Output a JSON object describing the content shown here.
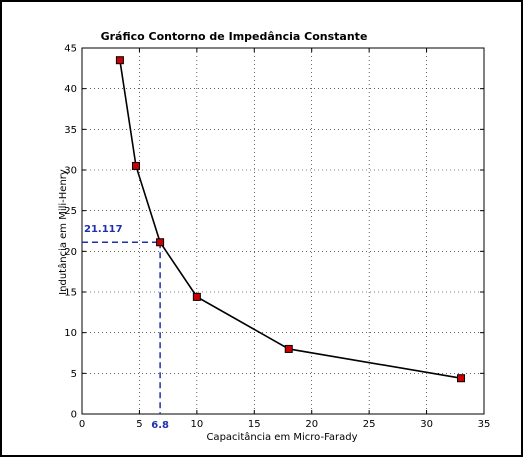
{
  "chart_data": {
    "type": "line",
    "title": "Gráfico Contorno de Impedância Constante",
    "xlabel": "Capacitância em Micro-Farady",
    "ylabel": "Indutância em Mili-Henry",
    "xlim": [
      0,
      35
    ],
    "ylim": [
      0,
      45
    ],
    "xticks": [
      0,
      5,
      10,
      15,
      20,
      25,
      30,
      35
    ],
    "yticks": [
      0,
      5,
      10,
      15,
      20,
      25,
      30,
      35,
      40,
      45
    ],
    "grid": true,
    "x": [
      3.3,
      4.7,
      6.8,
      10,
      18,
      33
    ],
    "y": [
      43.5,
      30.5,
      21.117,
      14.4,
      8.0,
      4.4
    ],
    "marker": "square",
    "line_color": "#000000",
    "marker_color": "#cc0000",
    "annotation": {
      "x": 6.8,
      "y": 21.117,
      "x_text": "6.8",
      "y_text": "21.117",
      "color": "#1f2fb0"
    }
  }
}
